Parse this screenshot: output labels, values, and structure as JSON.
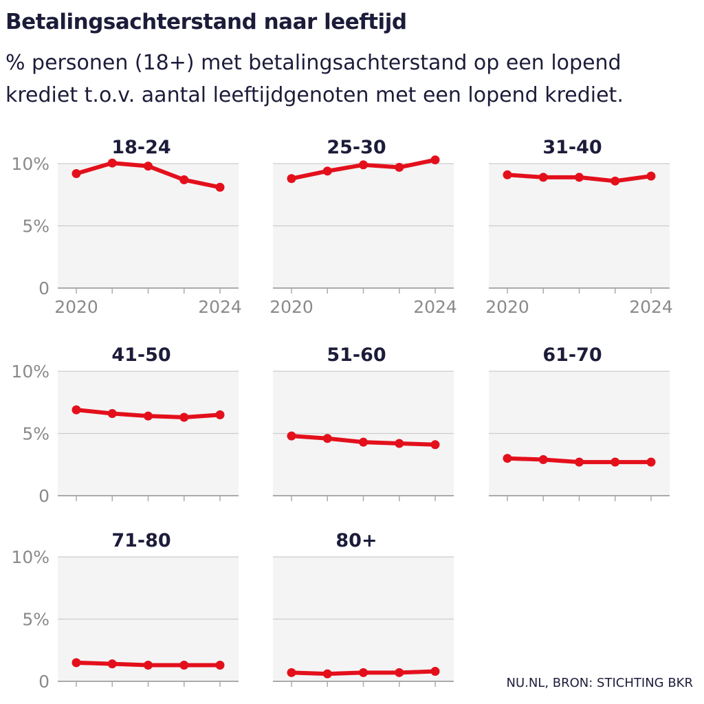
{
  "title": "Betalingsachterstand naar leeftijd",
  "subtitle": "% personen (18+) met betalingsachterstand op een lopend krediet t.o.v. aantal leeftijdgenoten met een lopend krediet.",
  "source": "NU.NL, BRON: STICHTING BKR",
  "colors": {
    "line": "#e3101c",
    "panel_bg": "#f4f4f4",
    "grid": "#cccccc",
    "tick_text": "#8a8a8a",
    "title_text": "#1c1c3a"
  },
  "chart_data": {
    "type": "line",
    "layout": "small-multiples",
    "x": [
      2020,
      2021,
      2022,
      2023,
      2024
    ],
    "x_tick_labels": [
      "2020",
      "2024"
    ],
    "y_ticks": [
      0,
      5,
      10
    ],
    "y_tick_labels": [
      "0",
      "5%",
      "10%"
    ],
    "ylim": [
      0,
      10
    ],
    "grid": true,
    "series": [
      {
        "name": "18-24",
        "values": [
          9.2,
          10.05,
          9.8,
          8.7,
          8.1
        ]
      },
      {
        "name": "25-30",
        "values": [
          8.8,
          9.4,
          9.9,
          9.7,
          10.3
        ]
      },
      {
        "name": "31-40",
        "values": [
          9.1,
          8.9,
          8.9,
          8.6,
          9.0
        ]
      },
      {
        "name": "41-50",
        "values": [
          6.9,
          6.6,
          6.4,
          6.3,
          6.5
        ]
      },
      {
        "name": "51-60",
        "values": [
          4.8,
          4.6,
          4.3,
          4.2,
          4.1
        ]
      },
      {
        "name": "61-70",
        "values": [
          3.0,
          2.9,
          2.7,
          2.7,
          2.7
        ]
      },
      {
        "name": "71-80",
        "values": [
          1.5,
          1.4,
          1.3,
          1.3,
          1.3
        ]
      },
      {
        "name": "80+",
        "values": [
          0.7,
          0.6,
          0.7,
          0.7,
          0.8
        ]
      }
    ]
  }
}
